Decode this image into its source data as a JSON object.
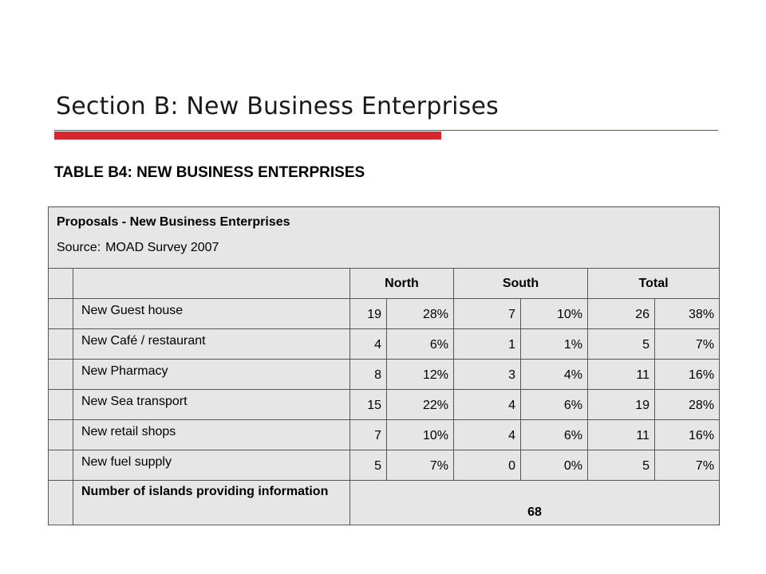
{
  "slide": {
    "title": "Section B: New Business Enterprises",
    "table_title": "TABLE B4: NEW BUSINESS ENTERPRISES"
  },
  "table": {
    "caption": "Proposals - New Business Enterprises",
    "source_label": "Source:",
    "source_value": "MOAD Survey 2007",
    "columns": [
      "North",
      "South",
      "Total"
    ],
    "rows": [
      {
        "label": "New Guest house",
        "north_n": "19",
        "north_p": "28%",
        "south_n": "7",
        "south_p": "10%",
        "total_n": "26",
        "total_p": "38%"
      },
      {
        "label": "New Café / restaurant",
        "north_n": "4",
        "north_p": "6%",
        "south_n": "1",
        "south_p": "1%",
        "total_n": "5",
        "total_p": "7%"
      },
      {
        "label": "New Pharmacy",
        "north_n": "8",
        "north_p": "12%",
        "south_n": "3",
        "south_p": "4%",
        "total_n": "11",
        "total_p": "16%"
      },
      {
        "label": "New Sea transport",
        "north_n": "15",
        "north_p": "22%",
        "south_n": "4",
        "south_p": "6%",
        "total_n": "19",
        "total_p": "28%"
      },
      {
        "label": "New retail shops",
        "north_n": "7",
        "north_p": "10%",
        "south_n": "4",
        "south_p": "6%",
        "total_n": "11",
        "total_p": "16%"
      },
      {
        "label": "New fuel supply",
        "north_n": "5",
        "north_p": "7%",
        "south_n": "0",
        "south_p": "0%",
        "total_n": "5",
        "total_p": "7%"
      }
    ],
    "islands_label": "Number of islands providing information",
    "islands_value": "68"
  }
}
